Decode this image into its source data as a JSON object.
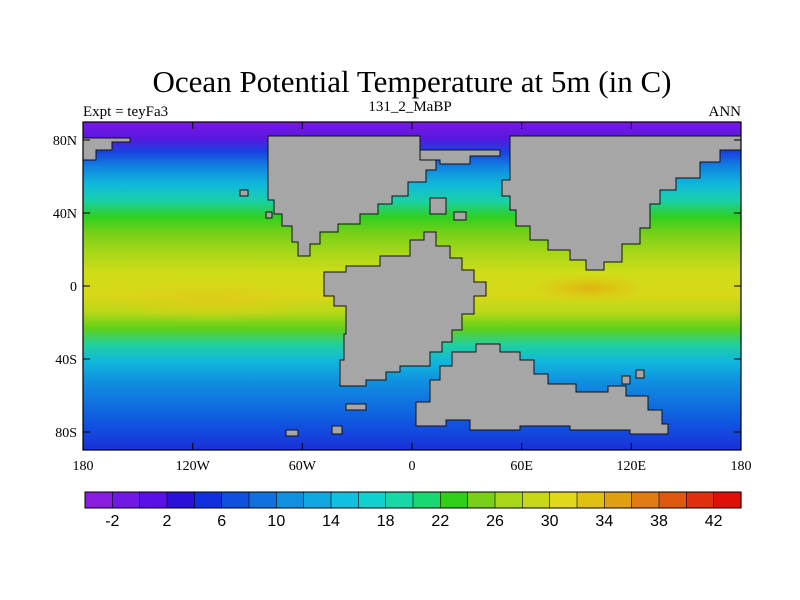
{
  "title": "Ocean Potential Temperature at 5m (in C)",
  "subtitle_left": "Expt = teyFa3",
  "subtitle_center": "131_2_MaBP",
  "subtitle_right": "ANN",
  "axes": {
    "lat_labels": [
      "80N",
      "40N",
      "0",
      "40S",
      "80S"
    ],
    "lon_labels": [
      "180",
      "120W",
      "60W",
      "0",
      "60E",
      "120E",
      "180"
    ]
  },
  "colorbar": {
    "labels": [
      "-2",
      "2",
      "6",
      "10",
      "14",
      "18",
      "22",
      "26",
      "30",
      "34",
      "38",
      "42"
    ],
    "colors": [
      "#8a1ee0",
      "#7018e6",
      "#5810e6",
      "#2a10d8",
      "#1030e0",
      "#1050e0",
      "#1070e0",
      "#1090e0",
      "#10a8e0",
      "#10c0e0",
      "#10d0d0",
      "#18d8a8",
      "#18d870",
      "#30d018",
      "#78d018",
      "#a8d818",
      "#c8d818",
      "#e0d818",
      "#e0c010",
      "#e0a010",
      "#e07c10",
      "#e05810",
      "#e03010",
      "#e01008"
    ],
    "label_font_size": 16
  },
  "colors": {
    "land": "#a6a6a6",
    "coast": "#111111",
    "frame": "#000000",
    "background": "#ffffff"
  }
}
